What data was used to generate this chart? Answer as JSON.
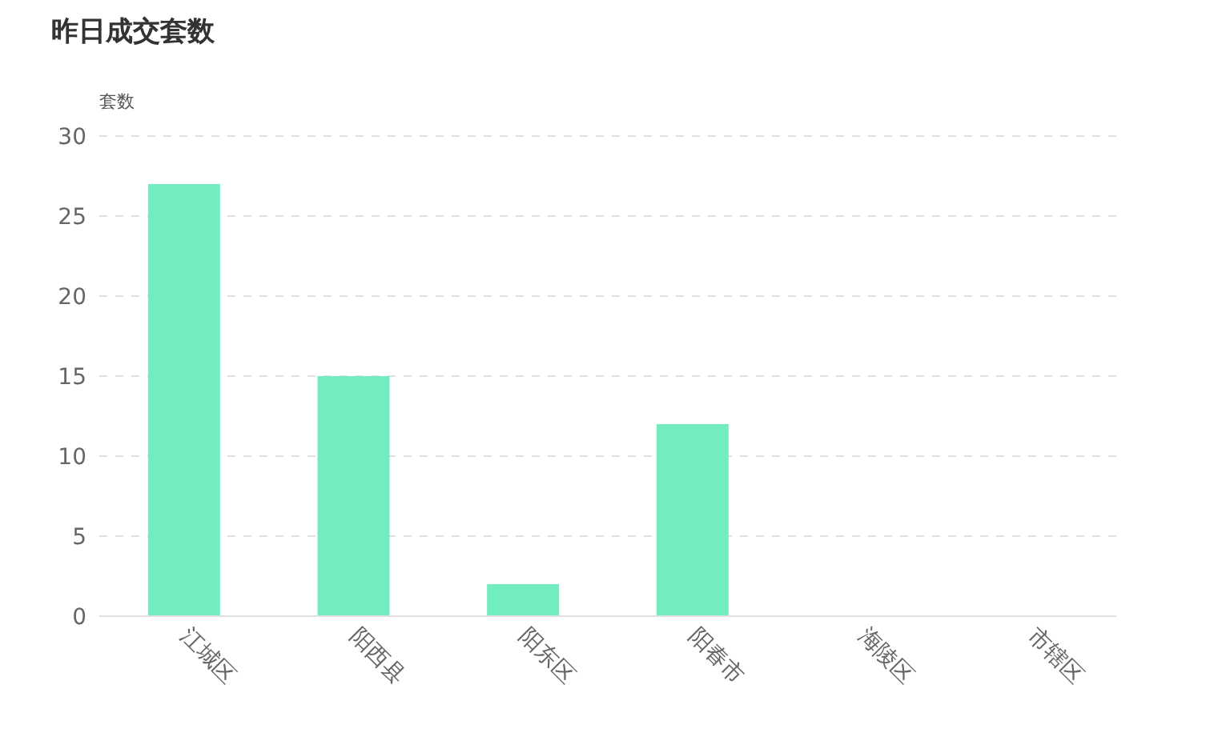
{
  "chart_data": {
    "type": "bar",
    "title": "昨日成交套数",
    "ylabel": "套数",
    "categories": [
      "江城区",
      "阳西县",
      "阳东区",
      "阳春市",
      "海陵区",
      "市辖区"
    ],
    "values": [
      27,
      15,
      2,
      12,
      0,
      0
    ],
    "color": "#72edc0",
    "ylim": [
      0,
      30
    ],
    "yticks": [
      0,
      5,
      10,
      15,
      20,
      25,
      30
    ],
    "grid": "y"
  }
}
